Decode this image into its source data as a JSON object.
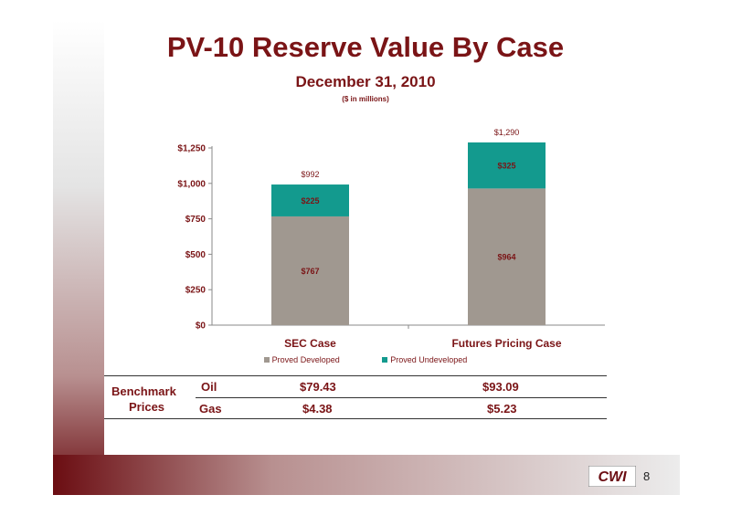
{
  "slide": {
    "title": "PV-10 Reserve Value By Case",
    "subtitle": "December 31, 2010",
    "unit_note": "($ in millions)",
    "page_number": "8",
    "logo_text": "CWI"
  },
  "colors": {
    "title": "#7a1416",
    "proved_developed": "#a09890",
    "proved_undeveloped": "#139a8e",
    "decor_dark": "#6b0d12"
  },
  "chart_data": {
    "type": "bar",
    "stacked": true,
    "categories": [
      "SEC Case",
      "Futures Pricing Case"
    ],
    "series": [
      {
        "name": "Proved Developed",
        "values": [
          767,
          964
        ],
        "labels": [
          "$767",
          "$964"
        ],
        "color": "#a09890"
      },
      {
        "name": "Proved Undeveloped",
        "values": [
          225,
          325
        ],
        "labels": [
          "$225",
          "$325"
        ],
        "color": "#139a8e"
      }
    ],
    "totals": [
      992,
      1290
    ],
    "total_labels": [
      "$992",
      "$1,290"
    ],
    "ylim": [
      0,
      1250
    ],
    "yticks": [
      0,
      250,
      500,
      750,
      1000,
      1250
    ],
    "ytick_labels": [
      "$0",
      "$250",
      "$500",
      "$750",
      "$1,000",
      "$1,250"
    ],
    "legend_position": "bottom",
    "grid": false
  },
  "benchmark": {
    "label_line1": "Benchmark",
    "label_line2": "Prices",
    "rows": [
      {
        "commodity": "Oil",
        "sec": "$79.43",
        "futures": "$93.09"
      },
      {
        "commodity": "Gas",
        "sec": "$4.38",
        "futures": "$5.23"
      }
    ]
  }
}
